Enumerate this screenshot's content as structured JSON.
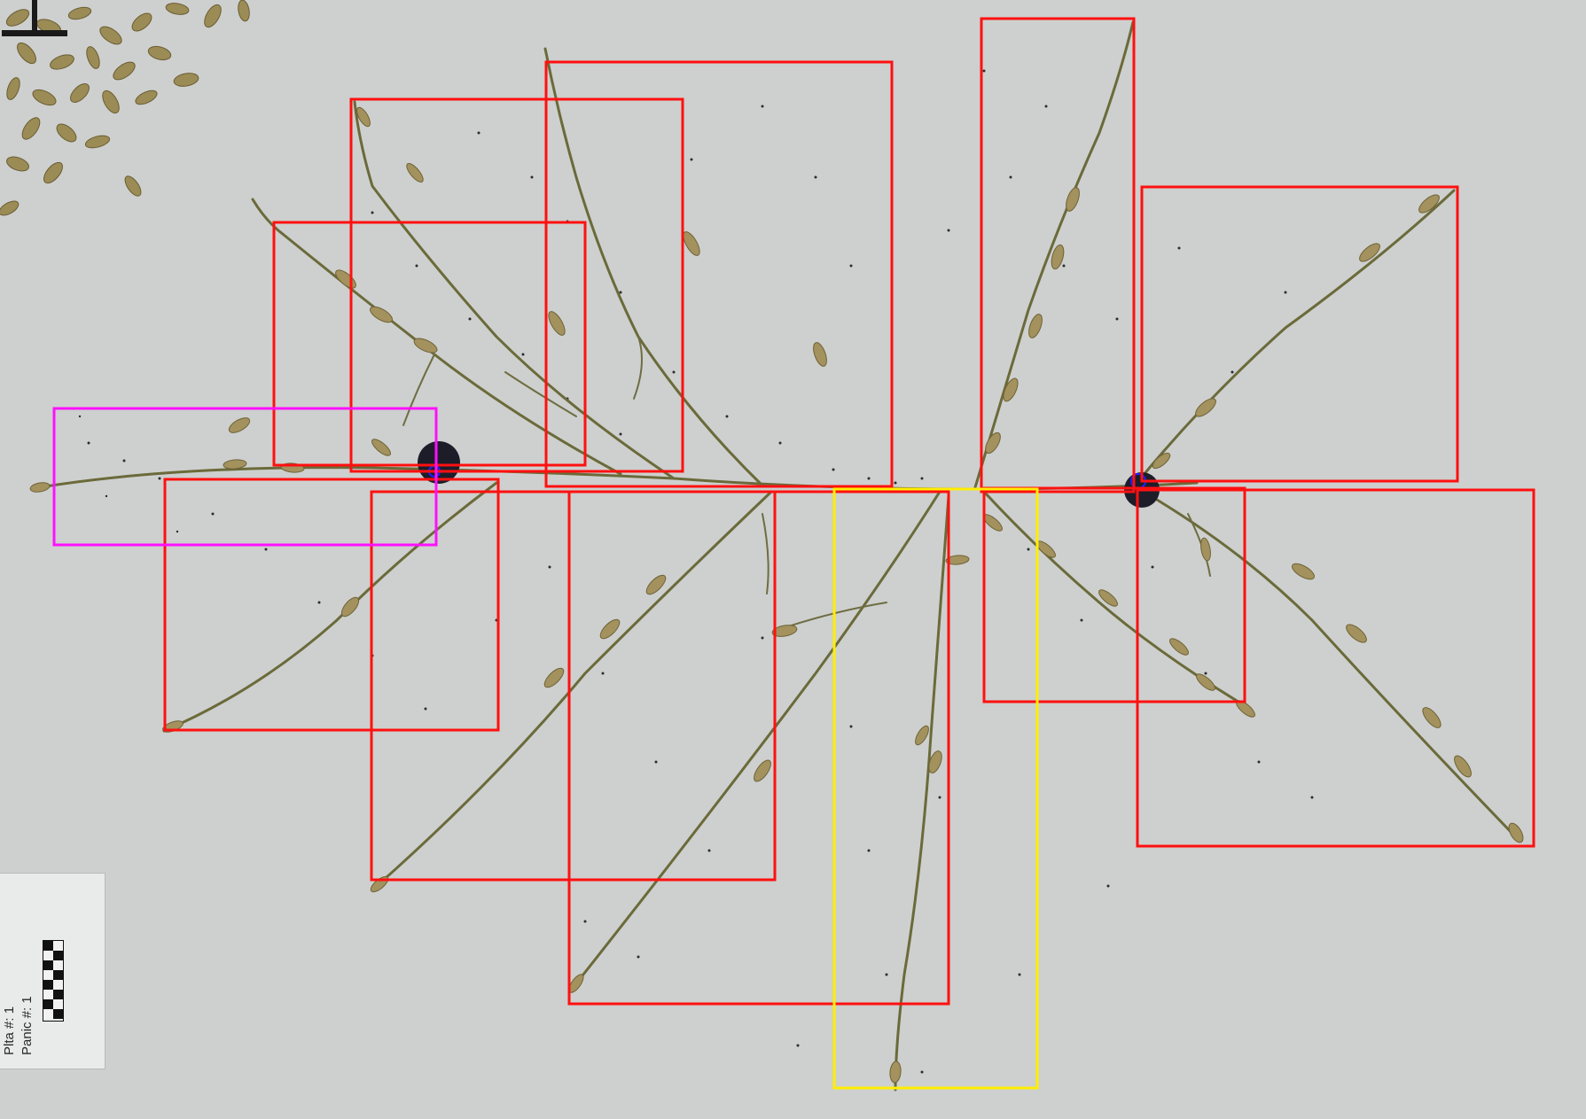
{
  "scene": {
    "subject": "rice-panicle-specimen",
    "background_color": "#cdd0ce",
    "stem_color": "#6b6a3a",
    "seed_color": "#a3925d"
  },
  "scale_card": {
    "plant_label": "Plta #:",
    "panicle_label": "Panic #:",
    "plant_value": "1",
    "panicle_value": "1"
  },
  "annotation_colors": {
    "branch_box": "#ff1010",
    "secondary_box": "#ffee00",
    "primary_box": "#ff10ff"
  },
  "markers": [
    {
      "name": "junction-marker-left",
      "color": "#1a1a2e"
    },
    {
      "name": "junction-marker-right",
      "color": "#1a1a2e",
      "accent": "#2020ff"
    }
  ]
}
